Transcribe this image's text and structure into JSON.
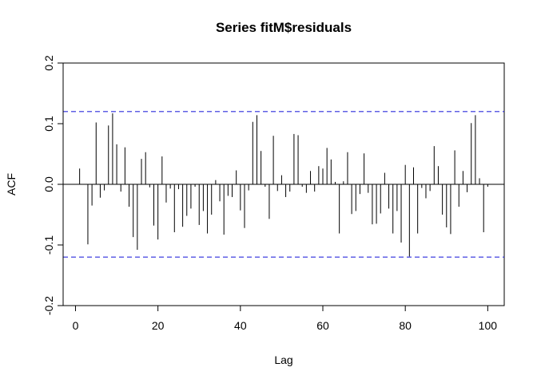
{
  "chart_data": {
    "type": "bar",
    "title": "Series  fitM$residuals",
    "xlabel": "Lag",
    "ylabel": "ACF",
    "xlim": [
      -3,
      104
    ],
    "ylim": [
      -0.2,
      0.2
    ],
    "x_ticks": [
      0,
      20,
      40,
      60,
      80,
      100
    ],
    "x_tick_labels": [
      "0",
      "20",
      "40",
      "60",
      "80",
      "100"
    ],
    "y_ticks": [
      -0.2,
      -0.1,
      0.0,
      0.1,
      0.2
    ],
    "y_tick_labels": [
      "-0.2",
      "-0.1",
      "0.0",
      "0.1",
      "0.2"
    ],
    "confidence_limits": [
      0.12,
      -0.12
    ],
    "confidence_color": "#2b2bdc",
    "grid": false,
    "lags": [
      1,
      2,
      3,
      4,
      5,
      6,
      7,
      8,
      9,
      10,
      11,
      12,
      13,
      14,
      15,
      16,
      17,
      18,
      19,
      20,
      21,
      22,
      23,
      24,
      25,
      26,
      27,
      28,
      29,
      30,
      31,
      32,
      33,
      34,
      35,
      36,
      37,
      38,
      39,
      40,
      41,
      42,
      43,
      44,
      45,
      46,
      47,
      48,
      49,
      50,
      51,
      52,
      53,
      54,
      55,
      56,
      57,
      58,
      59,
      60,
      61,
      62,
      63,
      64,
      65,
      66,
      67,
      68,
      69,
      70,
      71,
      72,
      73,
      74,
      75,
      76,
      77,
      78,
      79,
      80,
      81,
      82,
      83,
      84,
      85,
      86,
      87,
      88,
      89,
      90,
      91,
      92,
      93,
      94,
      95,
      96,
      97,
      98,
      99,
      100
    ],
    "values": [
      0.026,
      0.0,
      -0.099,
      -0.035,
      0.102,
      -0.022,
      -0.01,
      0.097,
      0.117,
      0.066,
      -0.012,
      0.061,
      -0.037,
      -0.087,
      -0.108,
      0.042,
      0.053,
      -0.005,
      -0.068,
      -0.091,
      0.046,
      -0.03,
      -0.007,
      -0.079,
      -0.008,
      -0.07,
      -0.052,
      -0.04,
      -0.004,
      -0.067,
      -0.044,
      -0.081,
      -0.05,
      0.007,
      -0.028,
      -0.083,
      -0.019,
      -0.021,
      0.023,
      -0.043,
      -0.072,
      -0.01,
      0.103,
      0.114,
      0.055,
      -0.004,
      -0.057,
      0.08,
      -0.011,
      0.015,
      -0.021,
      -0.012,
      0.083,
      0.081,
      -0.004,
      -0.014,
      0.022,
      -0.012,
      0.03,
      0.026,
      0.06,
      0.041,
      0.004,
      -0.081,
      0.005,
      0.053,
      -0.049,
      -0.044,
      -0.016,
      0.051,
      -0.014,
      -0.066,
      -0.065,
      -0.048,
      0.019,
      -0.04,
      -0.081,
      -0.044,
      -0.096,
      0.032,
      -0.119,
      0.028,
      -0.081,
      -0.006,
      -0.023,
      -0.011,
      0.063,
      0.03,
      -0.05,
      -0.071,
      -0.082,
      0.056,
      -0.037,
      0.022,
      -0.013,
      0.101,
      0.114,
      0.01,
      -0.079,
      -0.004
    ]
  }
}
